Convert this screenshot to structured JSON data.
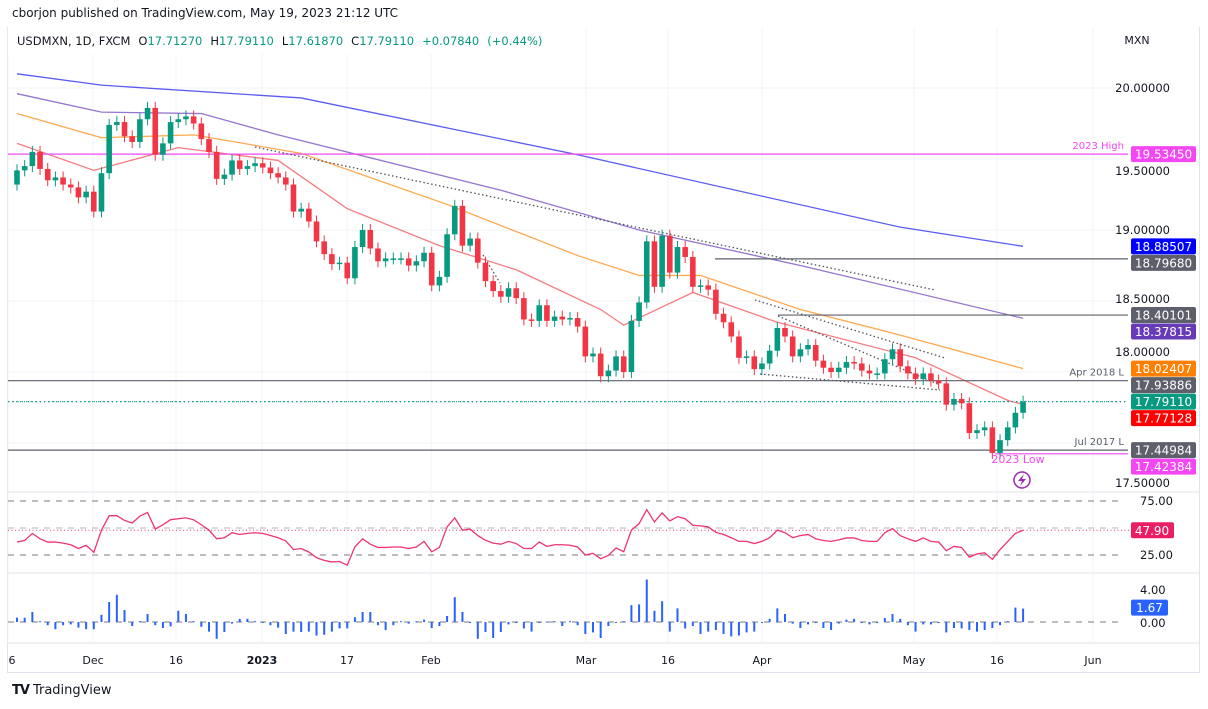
{
  "published_by": "cborjon published on TradingView.com, May 19, 2023 21:12 UTC",
  "legend": {
    "symbol": "USDMXN, 1D, FXCM",
    "open_label": "O",
    "open": "17.71270",
    "high_label": "H",
    "high": "17.79110",
    "low_label": "L",
    "low": "17.61870",
    "close_label": "C",
    "close": "17.79110",
    "change": "+0.07840",
    "change_pct": "(+0.44%)"
  },
  "currency": "MXN",
  "footer_brand": "TradingView",
  "colors": {
    "up": "#089981",
    "down": "#f23645",
    "ma20": "#f77c80",
    "ma50": "#ffa94d",
    "ma100": "#9575cd",
    "ma200": "#5b5bf5",
    "rsi": "#f0346f",
    "histogram": "#2962ff",
    "magenta": "#f447f4",
    "level": "#5d606b"
  },
  "chart_data": {
    "type": "candlestick",
    "symbol": "USDMXN",
    "interval": "1D",
    "ylim": [
      17.2,
      20.15
    ],
    "price_axis_ticks": [
      "20.00000",
      "19.50000",
      "19.00000",
      "18.50000",
      "18.00000",
      "17.50000"
    ],
    "x_tick_labels": [
      "6",
      "Dec",
      "16",
      "2023",
      "17",
      "Feb",
      "Mar",
      "16",
      "Apr",
      "May",
      "16",
      "Jun"
    ],
    "first_open": 19.32,
    "closes": [
      19.42,
      19.45,
      19.55,
      19.43,
      19.35,
      19.37,
      19.32,
      19.3,
      19.23,
      19.27,
      19.13,
      19.4,
      19.74,
      19.76,
      19.66,
      19.62,
      19.78,
      19.86,
      19.53,
      19.61,
      19.76,
      19.78,
      19.8,
      19.75,
      19.64,
      19.55,
      19.36,
      19.39,
      19.49,
      19.43,
      19.45,
      19.47,
      19.44,
      19.4,
      19.37,
      19.32,
      19.13,
      19.15,
      19.06,
      18.92,
      18.83,
      18.76,
      18.77,
      18.66,
      18.88,
      19.0,
      18.87,
      18.78,
      18.8,
      18.8,
      18.8,
      18.75,
      18.78,
      18.84,
      18.61,
      18.67,
      18.97,
      19.17,
      18.89,
      18.94,
      18.77,
      18.64,
      18.57,
      18.53,
      18.59,
      18.52,
      18.37,
      18.36,
      18.47,
      18.36,
      18.39,
      18.37,
      18.38,
      18.32,
      18.11,
      18.13,
      17.97,
      18.01,
      18.11,
      18.0,
      18.36,
      18.49,
      18.92,
      18.6,
      18.96,
      18.7,
      18.88,
      18.81,
      18.6,
      18.61,
      18.58,
      18.41,
      18.35,
      18.25,
      18.1,
      18.11,
      18.02,
      18.06,
      18.15,
      18.31,
      18.25,
      18.11,
      18.16,
      18.19,
      18.08,
      18.03,
      18.0,
      18.03,
      18.07,
      18.06,
      18.01,
      17.99,
      17.99,
      18.09,
      18.16,
      18.04,
      17.99,
      17.95,
      17.99,
      17.94,
      17.92,
      17.77,
      17.81,
      17.78,
      17.57,
      17.59,
      17.61,
      17.43,
      17.52,
      17.61,
      17.7127,
      17.7911
    ],
    "moving_averages": [
      {
        "color_key": "ma20",
        "points": [
          [
            0,
            19.61
          ],
          [
            10,
            19.42
          ],
          [
            21,
            19.58
          ],
          [
            34,
            19.49
          ],
          [
            43,
            19.15
          ],
          [
            55,
            18.89
          ],
          [
            65,
            18.72
          ],
          [
            76,
            18.44
          ],
          [
            79,
            18.33
          ],
          [
            88,
            18.56
          ],
          [
            99,
            18.35
          ],
          [
            117,
            18.1
          ],
          [
            129,
            17.8
          ],
          [
            131,
            17.77128
          ]
        ]
      },
      {
        "color_key": "ma50",
        "points": [
          [
            0,
            19.82
          ],
          [
            11,
            19.65
          ],
          [
            23,
            19.67
          ],
          [
            37,
            19.54
          ],
          [
            56,
            19.18
          ],
          [
            73,
            18.82
          ],
          [
            81,
            18.68
          ],
          [
            89,
            18.68
          ],
          [
            102,
            18.44
          ],
          [
            115,
            18.26
          ],
          [
            131,
            18.02407
          ]
        ]
      },
      {
        "color_key": "ma100",
        "points": [
          [
            0,
            19.96
          ],
          [
            11,
            19.83
          ],
          [
            24,
            19.82
          ],
          [
            34,
            19.67
          ],
          [
            63,
            19.28
          ],
          [
            81,
            19.0
          ],
          [
            102,
            18.75
          ],
          [
            131,
            18.37815
          ]
        ]
      },
      {
        "color_key": "ma200",
        "points": [
          [
            0,
            20.1
          ],
          [
            11,
            20.02
          ],
          [
            37,
            19.93
          ],
          [
            73,
            19.53
          ],
          [
            115,
            19.02
          ],
          [
            131,
            18.88507
          ]
        ]
      }
    ],
    "levels": [
      {
        "value": 19.5345,
        "badge": "19.53450",
        "note": "2023 High",
        "color_key": "magenta"
      },
      {
        "value": 18.88507,
        "badge": "18.88507",
        "note": "",
        "badge_color": "#0000ff"
      },
      {
        "value": 18.7968,
        "badge": "18.79680",
        "note": "",
        "color_key": "level"
      },
      {
        "value": 18.40101,
        "badge": "18.40101",
        "note": "",
        "color_key": "level"
      },
      {
        "value": 18.37815,
        "badge": "18.37815",
        "note": "",
        "badge_color": "#673ab7"
      },
      {
        "value": 18.02407,
        "badge": "18.02407",
        "note": "",
        "badge_color": "#ff7f00"
      },
      {
        "value": 17.93886,
        "badge": "17.93886",
        "note": "Apr 2018 L",
        "color_key": "level"
      },
      {
        "value": 17.7911,
        "badge": "17.79110",
        "note": "",
        "badge_color": "#089981"
      },
      {
        "value": 17.77128,
        "badge": "17.77128",
        "note": "",
        "badge_color": "#ff0000"
      },
      {
        "value": 17.44984,
        "badge": "17.44984",
        "note": "Jul 2017 L",
        "color_key": "level"
      },
      {
        "value": 17.42384,
        "badge": "17.42384",
        "note": "",
        "color_key": "magenta"
      }
    ],
    "low_annotation": "2023 Low",
    "rsi": {
      "ticks": [
        "75.00",
        "25.00"
      ],
      "current": "47.90",
      "values": [
        37,
        38.5,
        45,
        40,
        37,
        37,
        36,
        34.5,
        31,
        34,
        27.5,
        48,
        61.4,
        61.4,
        57,
        54.6,
        61,
        64.4,
        49,
        53,
        57.7,
        58.6,
        59.4,
        57.6,
        53,
        48,
        40,
        41,
        45.6,
        44,
        45,
        45.6,
        45,
        43,
        41,
        38,
        30,
        31,
        27.8,
        22.5,
        20,
        18.6,
        19,
        15.6,
        32.5,
        40,
        35,
        32,
        32,
        32.4,
        32.4,
        31,
        32.4,
        37.6,
        28,
        32,
        51,
        59.4,
        48,
        49,
        43,
        38.6,
        36,
        35,
        37.6,
        35.6,
        31,
        31,
        37,
        33,
        34.5,
        34.5,
        34,
        32.4,
        25,
        26.5,
        21.5,
        24.6,
        31.6,
        28,
        48,
        54,
        67,
        55.6,
        64,
        56.5,
        60.5,
        58.6,
        52.5,
        52,
        51,
        46,
        44,
        41,
        37.6,
        37.6,
        35.6,
        37.6,
        41,
        48,
        45.6,
        41,
        43,
        44,
        40,
        38.4,
        37.6,
        39,
        40.8,
        40.8,
        38.4,
        37.6,
        37.6,
        45.6,
        49.5,
        43,
        40,
        37.6,
        40.8,
        37.6,
        37,
        29,
        33,
        32,
        23,
        26,
        27,
        21,
        30,
        37.6,
        45,
        47.9
      ]
    },
    "histogram": {
      "ticks": [
        "4.00",
        "0.00"
      ],
      "current": "1.67",
      "values": [
        0.54,
        0.54,
        1.25,
        0.1,
        -0.4,
        -0.9,
        -0.4,
        -0.3,
        -0.7,
        -0.9,
        -0.9,
        0.9,
        2.5,
        3.4,
        1.5,
        -0.5,
        0.1,
        1.0,
        -0.4,
        -0.75,
        -0.55,
        1.4,
        1.0,
        0.1,
        -0.6,
        -1.2,
        -2.1,
        -1.25,
        -0.2,
        0.4,
        0.4,
        0.1,
        -0.1,
        -0.4,
        -0.7,
        -1.5,
        -1.2,
        -1.25,
        -1.2,
        -1.7,
        -1.6,
        -1.2,
        -0.8,
        -0.8,
        0.6,
        1.25,
        1.25,
        -0.4,
        -1.0,
        -0.4,
        0.1,
        -0.2,
        0.1,
        0.3,
        -0.75,
        -0.5,
        0.75,
        3.1,
        1.25,
        -0.1,
        -2.1,
        -1.25,
        -2.0,
        -1.25,
        -0.3,
        -0.1,
        -0.8,
        -1.2,
        -0.1,
        0.05,
        0.1,
        -0.5,
        0.1,
        -0.4,
        -1.5,
        -1.3,
        -2.0,
        -0.5,
        0,
        0.1,
        2.1,
        2.2,
        5.3,
        1.4,
        2.6,
        -1.2,
        1.7,
        -0.8,
        -0.5,
        -1.5,
        -1.2,
        -1.0,
        -1.5,
        -1.8,
        -1.7,
        -1.3,
        -1.2,
        -0.1,
        0.4,
        1.7,
        1.0,
        -0.2,
        -0.75,
        -0.3,
        -0.1,
        -0.75,
        -1.0,
        -0.2,
        0.3,
        0.4,
        -0.1,
        -0.3,
        -0.1,
        0.5,
        1.0,
        0.4,
        -0.4,
        -1.2,
        -0.3,
        -0.3,
        -0.1,
        -1.3,
        -0.75,
        -0.8,
        -1.0,
        -1.2,
        -1.0,
        -0.75,
        -0.4,
        0.1,
        1.8,
        1.67
      ]
    }
  }
}
